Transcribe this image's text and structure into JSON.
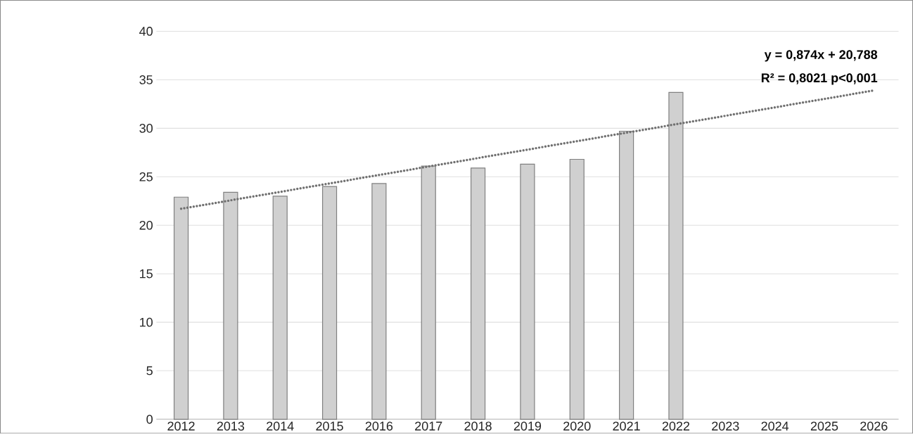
{
  "chart_data": {
    "type": "bar",
    "x": [
      2012,
      2013,
      2014,
      2015,
      2016,
      2017,
      2018,
      2019,
      2020,
      2021,
      2022
    ],
    "series": [
      {
        "color": "#d0d0d0",
        "values": [
          22.9,
          23.4,
          23.0,
          24.0,
          24.3,
          26.1,
          25.9,
          26.3,
          26.8,
          29.7,
          33.7
        ]
      },
      {
        "type": "line",
        "color": "#707070",
        "line_style": "dotted",
        "x": [
          2012,
          2026
        ],
        "values": [
          21.7,
          33.9
        ]
      }
    ],
    "xlim": [
      2011.5,
      2026.5
    ],
    "xticks": [
      2012,
      2013,
      2014,
      2015,
      2016,
      2017,
      2018,
      2019,
      2020,
      2021,
      2022,
      2023,
      2024,
      2025,
      2026
    ],
    "ylim": [
      0,
      40
    ],
    "yticks": [
      0,
      5,
      10,
      15,
      20,
      25,
      30,
      35,
      40
    ],
    "grid": "y",
    "annotations": [
      "y = 0,874x + 20,788",
      "R² = 0,8021 p<0,001"
    ]
  }
}
